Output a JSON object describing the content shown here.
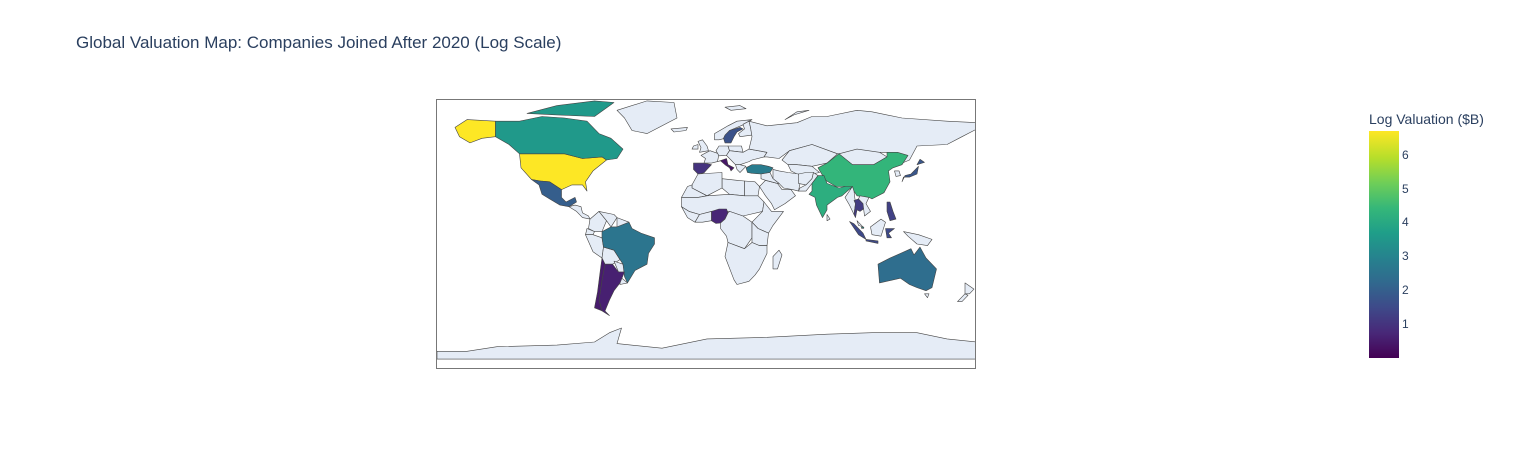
{
  "title": "Global Valuation Map: Companies Joined After 2020 (Log Scale)",
  "colorbar": {
    "title": "Log Valuation ($B)",
    "range": [
      0,
      6.7
    ],
    "ticks": [
      "1",
      "2",
      "3",
      "4",
      "5",
      "6"
    ],
    "colorscale": "Viridis"
  },
  "colors": {
    "land": "#e5ecf6",
    "border": "#444444",
    "title": "#2a3f5f"
  },
  "chart_data": {
    "type": "choropleth",
    "projection": "equirectangular",
    "colorbar_title": "Log Valuation ($B)",
    "zmin": 0,
    "zmax": 6.7,
    "countries": [
      {
        "name": "United States",
        "value": 6.7
      },
      {
        "name": "China",
        "value": 4.4
      },
      {
        "name": "India",
        "value": 4.2
      },
      {
        "name": "Canada",
        "value": 3.6
      },
      {
        "name": "Singapore",
        "value": 3.4
      },
      {
        "name": "Turkey",
        "value": 2.8
      },
      {
        "name": "Brazil",
        "value": 2.6
      },
      {
        "name": "Australia",
        "value": 2.4
      },
      {
        "name": "Mexico",
        "value": 2.0
      },
      {
        "name": "Japan",
        "value": 1.8
      },
      {
        "name": "Sweden",
        "value": 1.7
      },
      {
        "name": "Indonesia",
        "value": 1.5
      },
      {
        "name": "Philippines",
        "value": 1.3
      },
      {
        "name": "Thailand",
        "value": 1.2
      },
      {
        "name": "Spain",
        "value": 1.0
      },
      {
        "name": "Nigeria",
        "value": 0.7
      },
      {
        "name": "Argentina",
        "value": 0.6
      },
      {
        "name": "Chile",
        "value": 0.5
      },
      {
        "name": "Italy",
        "value": 0.4
      }
    ]
  }
}
